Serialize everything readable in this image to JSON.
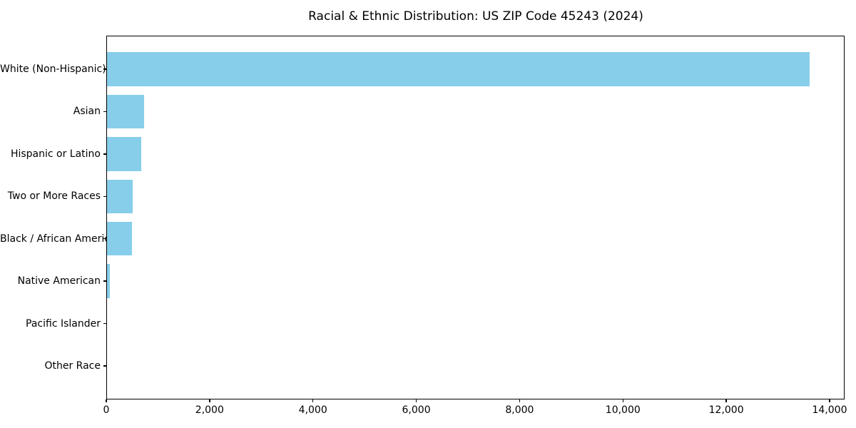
{
  "chart_data": {
    "type": "bar",
    "orientation": "horizontal",
    "title": "Racial & Ethnic Distribution: US ZIP Code 45243 (2024)",
    "categories": [
      "White (Non-Hispanic)",
      "Asian",
      "Hispanic or Latino",
      "Two or More Races",
      "Black / African American",
      "Native American",
      "Pacific Islander",
      "Other Race"
    ],
    "values": [
      13620,
      735,
      670,
      515,
      500,
      70,
      0,
      0
    ],
    "xlabel": "",
    "ylabel": "",
    "xlim": [
      0,
      14290
    ],
    "x_ticks": [
      0,
      2000,
      4000,
      6000,
      8000,
      10000,
      12000,
      14000
    ],
    "x_tick_labels": [
      "0",
      "2,000",
      "4,000",
      "6,000",
      "8,000",
      "10,000",
      "12,000",
      "14,000"
    ],
    "grid": false,
    "legend": "none",
    "bar_color": "#87CEEB",
    "frame_color": "#000000",
    "text_color": "#000000",
    "background_color": "#FFFFFF"
  }
}
